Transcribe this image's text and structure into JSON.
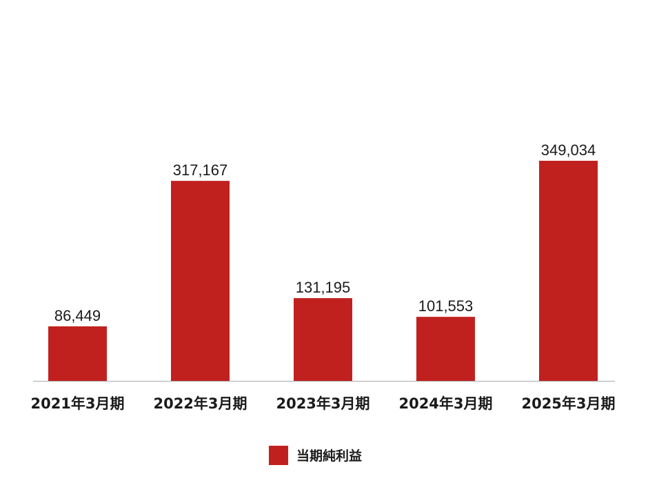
{
  "chart_data": {
    "type": "bar",
    "categories": [
      "2021年3月期",
      "2022年3月期",
      "2023年3月期",
      "2024年3月期",
      "2025年3月期"
    ],
    "series": [
      {
        "name": "当期純利益",
        "values": [
          86449,
          317167,
          131195,
          101553,
          349034
        ],
        "value_labels": [
          "86,449",
          "317,167",
          "131,195",
          "101,553",
          "349,034"
        ],
        "color": "#c0211f"
      }
    ],
    "ylim": [
      0,
      349034
    ],
    "grid": false,
    "legend_position": "bottom-center",
    "axis_color": "#aaaaaa"
  }
}
